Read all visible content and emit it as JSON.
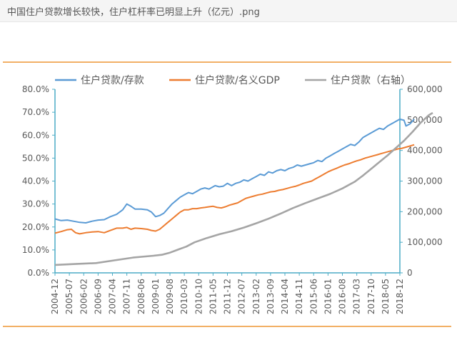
{
  "file_title": "中国住户贷款增长较快，住户杠杆率已明显上升（亿元）.png",
  "colors": {
    "blue": "#5b9bd5",
    "orange": "#ed7d31",
    "gray": "#a5a5a5",
    "axis": "#4bacc6",
    "rule": "#f2b066"
  },
  "chart_data": {
    "type": "line",
    "legend_position": "top",
    "grid": false,
    "x_ticks": [
      "2004-12",
      "2005-07",
      "2006-02",
      "2006-09",
      "2007-04",
      "2007-11",
      "2008-06",
      "2009-01",
      "2009-08",
      "2010-03",
      "2010-10",
      "2011-05",
      "2011-12",
      "2012-07",
      "2013-02",
      "2013-09",
      "2014-04",
      "2014-11",
      "2015-06",
      "2016-01",
      "2016-08",
      "2017-03",
      "2017-10",
      "2018-05",
      "2018-12"
    ],
    "y_left": {
      "ticks": [
        "0.0%",
        "10.0%",
        "20.0%",
        "30.0%",
        "40.0%",
        "50.0%",
        "60.0%",
        "70.0%",
        "80.0%"
      ],
      "min": 0,
      "max": 80
    },
    "y_right": {
      "ticks": [
        "0",
        "100,000",
        "200,000",
        "300,000",
        "400,000",
        "500,000",
        "600,000"
      ],
      "min": 0,
      "max": 600000
    },
    "series": [
      {
        "name": "住户贷款/存款",
        "axis": "left",
        "color": "#5b9bd5",
        "points": [
          [
            0,
            23.5
          ],
          [
            3,
            22.8
          ],
          [
            6,
            23
          ],
          [
            9,
            22.5
          ],
          [
            12,
            22
          ],
          [
            15,
            21.8
          ],
          [
            18,
            22.5
          ],
          [
            21,
            23
          ],
          [
            24,
            23.2
          ],
          [
            27,
            24.5
          ],
          [
            30,
            25.5
          ],
          [
            33,
            27.5
          ],
          [
            35,
            30
          ],
          [
            37,
            29
          ],
          [
            39,
            27.8
          ],
          [
            42,
            27.8
          ],
          [
            45,
            27.5
          ],
          [
            47,
            26.5
          ],
          [
            49,
            24.5
          ],
          [
            51,
            25
          ],
          [
            53,
            26
          ],
          [
            55,
            28
          ],
          [
            57,
            30
          ],
          [
            59,
            31.5
          ],
          [
            61,
            33
          ],
          [
            63,
            34
          ],
          [
            65,
            35
          ],
          [
            67,
            34.5
          ],
          [
            69,
            35.5
          ],
          [
            71,
            36.5
          ],
          [
            73,
            37
          ],
          [
            75,
            36.5
          ],
          [
            77,
            37.5
          ],
          [
            78,
            38
          ],
          [
            80,
            37.5
          ],
          [
            82,
            37.8
          ],
          [
            84,
            39
          ],
          [
            86,
            38
          ],
          [
            88,
            39
          ],
          [
            90,
            39.5
          ],
          [
            92,
            40.5
          ],
          [
            94,
            40
          ],
          [
            96,
            41
          ],
          [
            98,
            42
          ],
          [
            100,
            43
          ],
          [
            102,
            42.5
          ],
          [
            104,
            44
          ],
          [
            106,
            43.5
          ],
          [
            108,
            44.5
          ],
          [
            110,
            45
          ],
          [
            112,
            44.5
          ],
          [
            114,
            45.5
          ],
          [
            116,
            46
          ],
          [
            118,
            47
          ],
          [
            120,
            46.5
          ],
          [
            122,
            47
          ],
          [
            124,
            47.5
          ],
          [
            126,
            48
          ],
          [
            128,
            49
          ],
          [
            130,
            48.5
          ],
          [
            132,
            50
          ],
          [
            134,
            51
          ],
          [
            136,
            52
          ],
          [
            138,
            53
          ],
          [
            140,
            54
          ],
          [
            142,
            55
          ],
          [
            144,
            56
          ],
          [
            146,
            55.5
          ],
          [
            148,
            57
          ],
          [
            150,
            59
          ],
          [
            152,
            60
          ],
          [
            154,
            61
          ],
          [
            156,
            62
          ],
          [
            158,
            63
          ],
          [
            160,
            62.5
          ],
          [
            162,
            64
          ],
          [
            164,
            65
          ],
          [
            166,
            66
          ],
          [
            168,
            67
          ],
          [
            170,
            66.5
          ],
          [
            171,
            64
          ],
          [
            173,
            65
          ],
          [
            175,
            67
          ]
        ]
      },
      {
        "name": "住户贷款/名义GDP",
        "axis": "left",
        "color": "#ed7d31",
        "points": [
          [
            0,
            17.3
          ],
          [
            3,
            18
          ],
          [
            6,
            18.8
          ],
          [
            8,
            19
          ],
          [
            10,
            17.5
          ],
          [
            12,
            17
          ],
          [
            15,
            17.5
          ],
          [
            18,
            17.8
          ],
          [
            21,
            18
          ],
          [
            24,
            17.5
          ],
          [
            27,
            18.5
          ],
          [
            30,
            19.5
          ],
          [
            33,
            19.5
          ],
          [
            35,
            19.8
          ],
          [
            37,
            19
          ],
          [
            39,
            19.5
          ],
          [
            42,
            19.3
          ],
          [
            45,
            19
          ],
          [
            47,
            18.5
          ],
          [
            49,
            18.2
          ],
          [
            51,
            19
          ],
          [
            53,
            20.5
          ],
          [
            55,
            22
          ],
          [
            57,
            23.5
          ],
          [
            59,
            25
          ],
          [
            61,
            26.5
          ],
          [
            63,
            27.5
          ],
          [
            65,
            27.5
          ],
          [
            67,
            28
          ],
          [
            69,
            28
          ],
          [
            71,
            28.3
          ],
          [
            73,
            28.5
          ],
          [
            75,
            28.8
          ],
          [
            77,
            29
          ],
          [
            79,
            28.5
          ],
          [
            81,
            28.3
          ],
          [
            83,
            28.8
          ],
          [
            85,
            29.5
          ],
          [
            87,
            30
          ],
          [
            89,
            30.5
          ],
          [
            91,
            31.5
          ],
          [
            93,
            32.5
          ],
          [
            95,
            33
          ],
          [
            97,
            33.5
          ],
          [
            99,
            34
          ],
          [
            101,
            34.3
          ],
          [
            103,
            34.8
          ],
          [
            105,
            35.3
          ],
          [
            107,
            35.5
          ],
          [
            109,
            36
          ],
          [
            111,
            36.3
          ],
          [
            113,
            36.8
          ],
          [
            115,
            37.3
          ],
          [
            117,
            37.7
          ],
          [
            119,
            38.3
          ],
          [
            121,
            39
          ],
          [
            123,
            39.5
          ],
          [
            125,
            40
          ],
          [
            127,
            41
          ],
          [
            129,
            42
          ],
          [
            131,
            43
          ],
          [
            133,
            44
          ],
          [
            135,
            44.8
          ],
          [
            137,
            45.5
          ],
          [
            139,
            46.3
          ],
          [
            141,
            47
          ],
          [
            143,
            47.5
          ],
          [
            145,
            48.2
          ],
          [
            147,
            48.8
          ],
          [
            149,
            49.3
          ],
          [
            151,
            50
          ],
          [
            153,
            50.5
          ],
          [
            155,
            51
          ],
          [
            157,
            51.5
          ],
          [
            159,
            52
          ],
          [
            161,
            52.5
          ],
          [
            163,
            53
          ],
          [
            165,
            53.5
          ],
          [
            167,
            54
          ],
          [
            169,
            54.3
          ],
          [
            171,
            54.8
          ],
          [
            173,
            55.3
          ],
          [
            175,
            55.8
          ]
        ]
      },
      {
        "name": "住户贷款（右轴）",
        "axis": "right",
        "color": "#a5a5a5",
        "points": [
          [
            0,
            26000
          ],
          [
            10,
            29000
          ],
          [
            20,
            32000
          ],
          [
            28,
            40000
          ],
          [
            38,
            50000
          ],
          [
            48,
            56000
          ],
          [
            52,
            59000
          ],
          [
            56,
            66000
          ],
          [
            60,
            76000
          ],
          [
            64,
            86000
          ],
          [
            68,
            100000
          ],
          [
            74,
            114000
          ],
          [
            80,
            126000
          ],
          [
            86,
            136000
          ],
          [
            92,
            148000
          ],
          [
            98,
            162000
          ],
          [
            104,
            177000
          ],
          [
            110,
            194000
          ],
          [
            116,
            212000
          ],
          [
            122,
            228000
          ],
          [
            128,
            243000
          ],
          [
            134,
            258000
          ],
          [
            140,
            276000
          ],
          [
            146,
            298000
          ],
          [
            150,
            318000
          ],
          [
            154,
            340000
          ],
          [
            158,
            362000
          ],
          [
            162,
            384000
          ],
          [
            166,
            408000
          ],
          [
            170,
            432000
          ],
          [
            174,
            460000
          ],
          [
            178,
            490000
          ],
          [
            182,
            515000
          ],
          [
            184,
            523000
          ]
        ]
      }
    ]
  }
}
